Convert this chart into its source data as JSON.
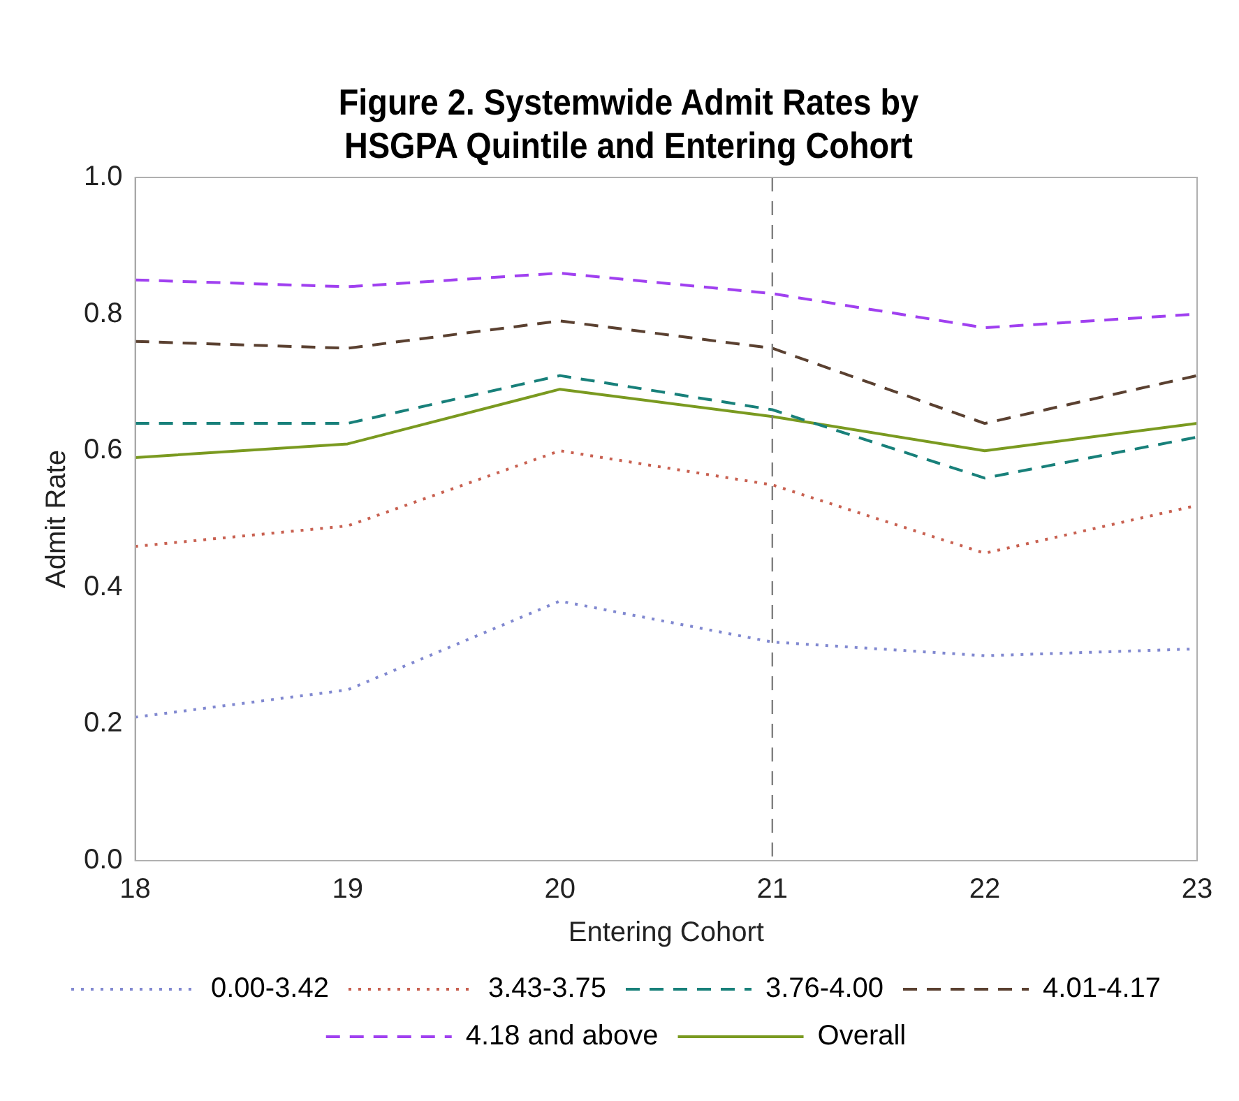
{
  "chart_data": {
    "type": "line",
    "title": "Figure 2. Systemwide Admit Rates by HSGPA Quintile and Entering Cohort",
    "xlabel": "Entering Cohort",
    "ylabel": "Admit Rate",
    "x": [
      18,
      19,
      20,
      21,
      22,
      23
    ],
    "xlim": [
      18,
      23
    ],
    "xticks": [
      18,
      19,
      20,
      21,
      22,
      23
    ],
    "ylim": [
      0,
      1
    ],
    "yticks": [
      {
        "value": 0,
        "label": "0.0"
      },
      0.2,
      0.4,
      0.6,
      0.8,
      {
        "value": 1,
        "label": "1.0"
      }
    ],
    "grid": false,
    "legend": "bottom",
    "marker": "none",
    "ref_lines": [
      {
        "axis": "x",
        "value": 21,
        "color": "#808080",
        "line_style": "dashed"
      }
    ],
    "series": [
      {
        "name": "0.00-3.42",
        "color": "#8088d0",
        "line_style": "dotted",
        "values": [
          0.21,
          0.25,
          0.38,
          0.32,
          0.3,
          0.31
        ]
      },
      {
        "name": "3.43-3.75",
        "color": "#c86050",
        "line_style": "dotted",
        "values": [
          0.46,
          0.49,
          0.6,
          0.55,
          0.45,
          0.52
        ]
      },
      {
        "name": "3.76-4.00",
        "color": "#18807a",
        "line_style": "dashed",
        "values": [
          0.64,
          0.64,
          0.71,
          0.66,
          0.56,
          0.62
        ]
      },
      {
        "name": "4.01-4.17",
        "color": "#5a4030",
        "line_style": "dashed",
        "values": [
          0.76,
          0.75,
          0.79,
          0.75,
          0.64,
          0.71
        ]
      },
      {
        "name": "4.18 and above",
        "color": "#a040f0",
        "line_style": "dashed",
        "values": [
          0.85,
          0.84,
          0.86,
          0.83,
          0.78,
          0.8
        ]
      },
      {
        "name": "Overall",
        "color": "#7a9a20",
        "line_style": "solid",
        "values": [
          0.59,
          0.61,
          0.69,
          0.65,
          0.6,
          0.64
        ]
      }
    ]
  }
}
